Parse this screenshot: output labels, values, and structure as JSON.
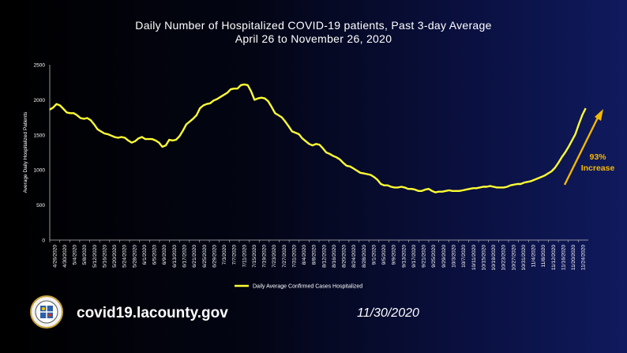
{
  "chart_data": {
    "type": "line",
    "title": "Daily Number of Hospitalized COVID-19 patients, Past 3-day Average",
    "subtitle": "April 26 to November 26, 2020",
    "ylabel": "Average Daily Hospitalized Patients",
    "xlabel": "",
    "ylim": [
      0,
      2500
    ],
    "yticks": [
      "0",
      "500",
      "1000",
      "1500",
      "2000",
      "2500"
    ],
    "xticks": [
      "4/26/2020",
      "4/30/2020",
      "5/4/2020",
      "5/8/2020",
      "5/12/2020",
      "5/16/2020",
      "5/20/2020",
      "5/24/2020",
      "5/28/2020",
      "6/1/2020",
      "6/5/2020",
      "6/9/2020",
      "6/13/2020",
      "6/17/2020",
      "6/21/2020",
      "6/25/2020",
      "6/29/2020",
      "7/3/2020",
      "7/7/2020",
      "7/11/2020",
      "7/15/2020",
      "7/19/2020",
      "7/23/2020",
      "7/27/2020",
      "7/31/2020",
      "8/4/2020",
      "8/8/2020",
      "8/12/2020",
      "8/16/2020",
      "8/20/2020",
      "8/24/2020",
      "8/28/2020",
      "9/1/2020",
      "9/5/2020",
      "9/9/2020",
      "9/13/2020",
      "9/17/2020",
      "9/21/2020",
      "9/25/2020",
      "9/29/2020",
      "10/3/2020",
      "10/7/2020",
      "10/11/2020",
      "10/15/2020",
      "10/19/2020",
      "10/23/2020",
      "10/27/2020",
      "10/31/2020",
      "11/4/2020",
      "11/8/2020",
      "11/12/2020",
      "11/16/2020",
      "11/20/2020",
      "11/24/2020"
    ],
    "grid": false,
    "legend_position": "bottom",
    "series": [
      {
        "name": "Daily Average Confirmed Cases Hospitalized",
        "color": "#ffff33",
        "values": [
          1860,
          1890,
          1940,
          1920,
          1870,
          1820,
          1810,
          1810,
          1780,
          1740,
          1730,
          1740,
          1710,
          1650,
          1580,
          1550,
          1520,
          1510,
          1490,
          1470,
          1460,
          1470,
          1460,
          1420,
          1390,
          1410,
          1450,
          1470,
          1440,
          1440,
          1440,
          1420,
          1390,
          1330,
          1350,
          1430,
          1420,
          1430,
          1480,
          1560,
          1650,
          1690,
          1730,
          1780,
          1880,
          1920,
          1940,
          1950,
          1990,
          2010,
          2040,
          2070,
          2100,
          2150,
          2160,
          2160,
          2210,
          2220,
          2210,
          2120,
          2000,
          2020,
          2030,
          2020,
          1980,
          1900,
          1810,
          1780,
          1750,
          1690,
          1620,
          1550,
          1530,
          1510,
          1450,
          1410,
          1370,
          1350,
          1370,
          1360,
          1310,
          1250,
          1230,
          1200,
          1180,
          1150,
          1100,
          1060,
          1050,
          1020,
          990,
          960,
          950,
          940,
          930,
          900,
          860,
          800,
          780,
          780,
          760,
          750,
          750,
          760,
          750,
          730,
          730,
          720,
          700,
          700,
          720,
          730,
          700,
          680,
          690,
          690,
          700,
          710,
          700,
          700,
          700,
          710,
          720,
          730,
          740,
          740,
          750,
          760,
          760,
          770,
          760,
          750,
          750,
          750,
          760,
          780,
          790,
          800,
          800,
          820,
          830,
          840,
          860,
          880,
          900,
          920,
          950,
          980,
          1030,
          1100,
          1180,
          1250,
          1330,
          1420,
          1510,
          1650,
          1780,
          1880
        ]
      }
    ],
    "annotations": [
      {
        "text_line1": "93%",
        "text_line2": "Increase",
        "color": "#f5b800"
      }
    ]
  },
  "footer": {
    "url": "covid19.lacounty.gov",
    "date": "11/30/2020",
    "seal_icon": "county-seal-icon"
  }
}
